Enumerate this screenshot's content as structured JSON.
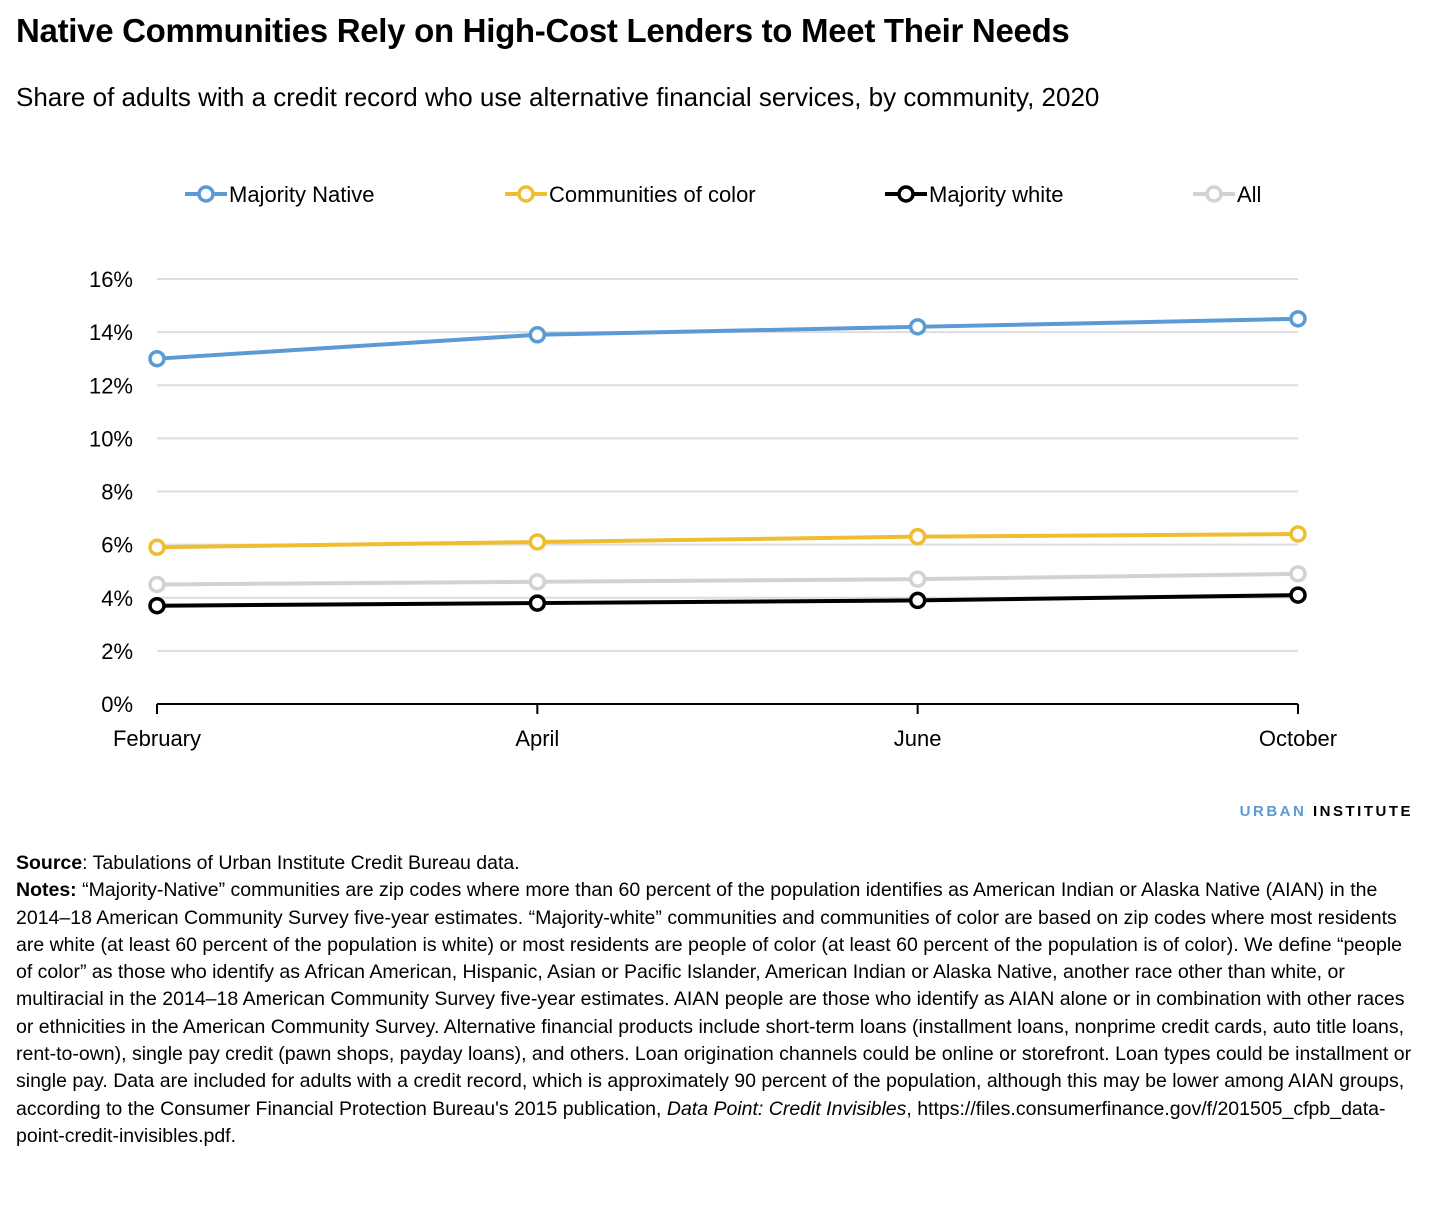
{
  "title": "Native Communities Rely on High-Cost Lenders to Meet Their Needs",
  "subtitle": "Share of adults with a credit record who use alternative financial services, by community, 2020",
  "chart_data": {
    "type": "line",
    "categories": [
      "February",
      "April",
      "June",
      "October"
    ],
    "ylim": [
      0,
      16
    ],
    "yticks": [
      "0%",
      "2%",
      "4%",
      "6%",
      "8%",
      "10%",
      "12%",
      "14%",
      "16%"
    ],
    "ytick_values": [
      0,
      2,
      4,
      6,
      8,
      10,
      12,
      14,
      16
    ],
    "grid": "horizontal",
    "legend": "top",
    "series": [
      {
        "name": "Majority Native",
        "color": "#5b9bd5",
        "values": [
          13.0,
          13.9,
          14.2,
          14.5
        ]
      },
      {
        "name": "Communities of color",
        "color": "#f0bd30",
        "values": [
          5.9,
          6.1,
          6.3,
          6.4
        ]
      },
      {
        "name": "Majority white",
        "color": "#000000",
        "values": [
          3.7,
          3.8,
          3.9,
          4.1
        ]
      },
      {
        "name": "All",
        "color": "#d2d2d2",
        "values": [
          4.5,
          4.6,
          4.7,
          4.9
        ]
      }
    ]
  },
  "brand": {
    "part1": "URBAN",
    "part2": "INSTITUTE"
  },
  "source": {
    "label": "Source",
    "text": ": Tabulations of Urban Institute Credit Bureau data."
  },
  "notes": {
    "label": "Notes:",
    "text": " “Majority-Native” communities are zip codes where more than 60 percent of the population identifies as American Indian or Alaska Native (AIAN) in the 2014–18 American Community Survey five-year estimates. “Majority-white” communities and communities of color are based on zip codes where most residents are white (at least 60 percent of the population is white) or most residents are people of color (at least 60 percent of the population is of color). We define “people of color” as those who identify as African American, Hispanic, Asian or Pacific Islander, American Indian or Alaska Native, another race other than white, or multiracial in the 2014–18 American Community Survey five-year estimates. AIAN people are those who identify as AIAN alone or in combination with other races or ethnicities in the American Community Survey. Alternative financial products include short-term loans (installment loans, nonprime credit cards, auto title loans, rent-to-own), single pay credit (pawn shops, payday loans), and others. Loan origination channels could be online or storefront. Loan types could be installment or single pay. Data are included for adults with a credit record, which is approximately 90 percent of the population, although this may be lower among AIAN groups, according to the Consumer Financial Protection Bureau's 2015 publication, ",
    "italic": "Data Point: Credit Invisibles",
    "tail": ", https://files.consumerfinance.gov/f/201505_cfpb_data-point-credit-invisibles.pdf."
  }
}
